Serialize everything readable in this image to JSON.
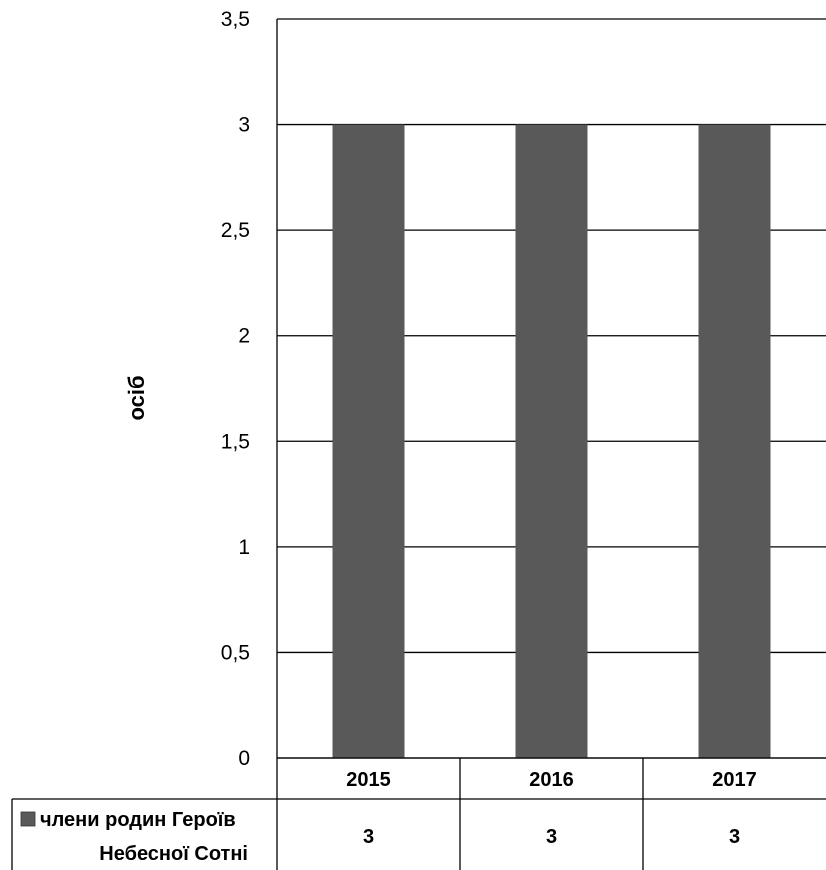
{
  "chart_data": {
    "type": "bar",
    "categories": [
      "2015",
      "2016",
      "2017"
    ],
    "series": [
      {
        "name": "члени родин Героїв Небесної Сотні",
        "values": [
          3,
          3,
          3
        ]
      }
    ],
    "value_labels": [
      "3",
      "3",
      "3"
    ],
    "legend_lines": [
      "члени родин Героїв",
      "Небесної Сотні"
    ],
    "ylabel": "осіб",
    "ylim": [
      0,
      3.5
    ],
    "y_ticks": [
      0,
      0.5,
      1,
      1.5,
      2,
      2.5,
      3,
      3.5
    ],
    "y_tick_labels": [
      "0",
      "0,5",
      "1",
      "1,5",
      "2",
      "2,5",
      "3",
      "3,5"
    ],
    "grid": true,
    "data_table": true,
    "colors": {
      "bar": "#595959",
      "grid": "#000000",
      "legend_key": "#595959"
    }
  }
}
